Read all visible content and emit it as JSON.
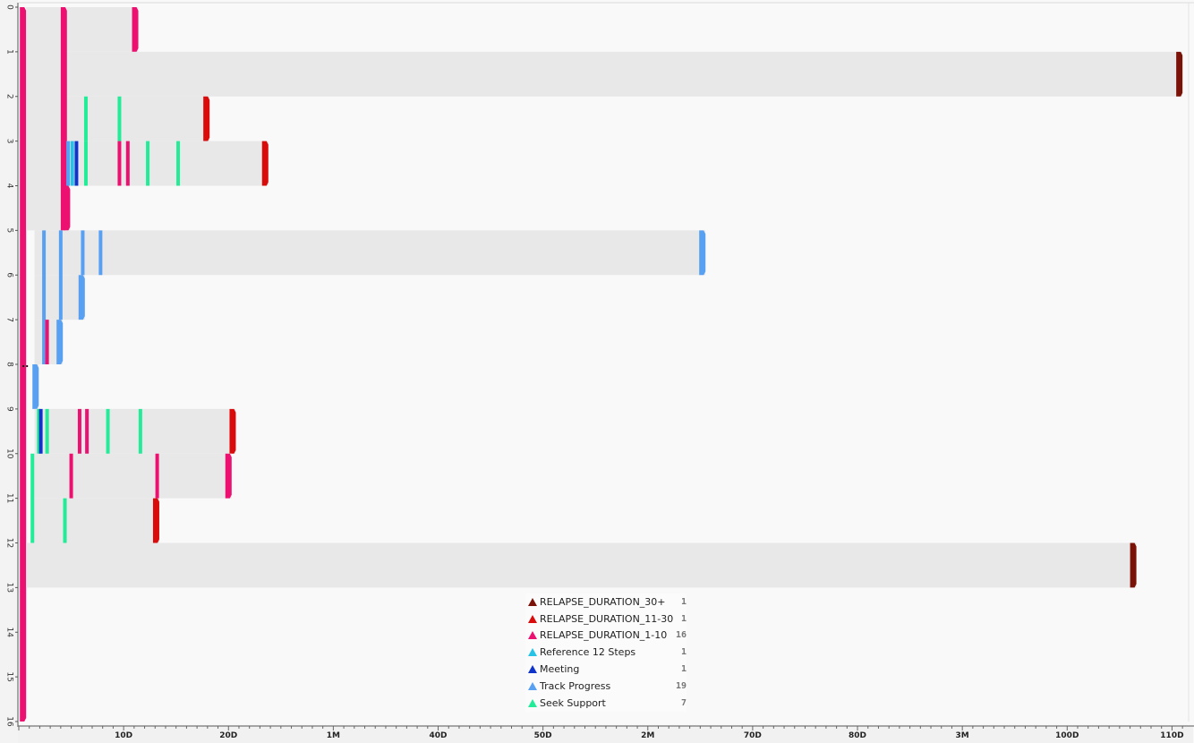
{
  "chart_data": {
    "type": "timeline",
    "y_ticks": [
      "0",
      "1",
      "2",
      "3",
      "4",
      "5",
      "6",
      "7",
      "8",
      "9",
      "10",
      "11",
      "12",
      "13",
      "14",
      "15",
      "16"
    ],
    "y_marker": "..",
    "x_ticks": [
      {
        "label": "10D",
        "days": 10
      },
      {
        "label": "20D",
        "days": 20
      },
      {
        "label": "1M",
        "days": 30
      },
      {
        "label": "40D",
        "days": 40
      },
      {
        "label": "50D",
        "days": 50
      },
      {
        "label": "2M",
        "days": 60
      },
      {
        "label": "70D",
        "days": 70
      },
      {
        "label": "80D",
        "days": 80
      },
      {
        "label": "3M",
        "days": 90
      },
      {
        "label": "100D",
        "days": 100
      },
      {
        "label": "110D",
        "days": 110
      }
    ],
    "x_range_days": [
      0,
      111.5
    ],
    "y_range": [
      0,
      16
    ],
    "colors": {
      "RELAPSE_DURATION_30+": "#7a1208",
      "RELAPSE_DURATION_11-30": "#d90b0b",
      "RELAPSE_DURATION_1-10": "#ec1070",
      "Reference 12 Steps": "#27c3e6",
      "Meeting": "#1033c9",
      "Track Progress": "#58a0f2",
      "Seek Support": "#23ec98"
    },
    "legend": [
      {
        "label": "RELAPSE_DURATION_30+",
        "count": "1"
      },
      {
        "label": "RELAPSE_DURATION_11-30",
        "count": "1"
      },
      {
        "label": "RELAPSE_DURATION_1-10",
        "count": "16"
      },
      {
        "label": "Reference 12 Steps",
        "count": "1"
      },
      {
        "label": "Meeting",
        "count": "1"
      },
      {
        "label": "Track Progress",
        "count": "19"
      },
      {
        "label": "Seek Support",
        "count": "7"
      }
    ],
    "bars": [
      {
        "start": 0.3,
        "end": 0.7,
        "y0": 0,
        "y1": 16,
        "end_type": "RELAPSE_DURATION_1-10",
        "shade": false
      },
      {
        "start": 0.7,
        "end": 4.6,
        "y0": 0,
        "y1": 5,
        "end_type": "RELAPSE_DURATION_1-10",
        "shade": true
      },
      {
        "start": 4.6,
        "end": 11.4,
        "y0": 0,
        "y1": 1,
        "end_type": "RELAPSE_DURATION_1-10",
        "shade": true
      },
      {
        "start": 4.6,
        "end": 111.0,
        "y0": 1,
        "y1": 2,
        "end_type": "RELAPSE_DURATION_30+",
        "shade": true
      },
      {
        "start": 4.6,
        "end": 18.2,
        "y0": 2,
        "y1": 3,
        "end_type": "RELAPSE_DURATION_11-30",
        "shade": true
      },
      {
        "start": 4.6,
        "end": 23.8,
        "y0": 3,
        "y1": 4,
        "end_type": "RELAPSE_DURATION_11-30",
        "shade": true
      },
      {
        "start": 4.6,
        "end": 4.9,
        "y0": 4,
        "y1": 5,
        "end_type": "RELAPSE_DURATION_1-10",
        "shade": true
      },
      {
        "start": 1.5,
        "end": 65.5,
        "y0": 5,
        "y1": 6,
        "end_type": "Track Progress",
        "shade": true
      },
      {
        "start": 1.5,
        "end": 6.3,
        "y0": 6,
        "y1": 7,
        "end_type": "Track Progress",
        "shade": true
      },
      {
        "start": 1.5,
        "end": 4.2,
        "y0": 7,
        "y1": 8,
        "end_type": "Track Progress",
        "shade": true
      },
      {
        "start": 1.5,
        "end": 1.9,
        "y0": 8,
        "y1": 9,
        "end_type": "Track Progress",
        "shade": true
      },
      {
        "start": 1.5,
        "end": 20.7,
        "y0": 9,
        "y1": 10,
        "end_type": "RELAPSE_DURATION_11-30",
        "shade": true
      },
      {
        "start": 1.3,
        "end": 20.3,
        "y0": 10,
        "y1": 11,
        "end_type": "RELAPSE_DURATION_1-10",
        "shade": true
      },
      {
        "start": 1.3,
        "end": 13.4,
        "y0": 11,
        "y1": 12,
        "end_type": "RELAPSE_DURATION_11-30",
        "shade": true
      },
      {
        "start": 0.7,
        "end": 106.6,
        "y0": 12,
        "y1": 13,
        "end_type": "RELAPSE_DURATION_30+",
        "shade": true
      }
    ],
    "events": [
      {
        "t": 6.4,
        "y0": 2,
        "y1": 3,
        "type": "Seek Support"
      },
      {
        "t": 9.6,
        "y0": 2,
        "y1": 3,
        "type": "Seek Support"
      },
      {
        "t": 4.7,
        "y0": 3,
        "y1": 4,
        "type": "Track Progress"
      },
      {
        "t": 5.1,
        "y0": 3,
        "y1": 4,
        "type": "Reference 12 Steps"
      },
      {
        "t": 5.5,
        "y0": 3,
        "y1": 4,
        "type": "Meeting"
      },
      {
        "t": 6.4,
        "y0": 3,
        "y1": 4,
        "type": "Seek Support"
      },
      {
        "t": 9.6,
        "y0": 3,
        "y1": 4,
        "type": "RELAPSE_DURATION_1-10"
      },
      {
        "t": 10.4,
        "y0": 3,
        "y1": 4,
        "type": "RELAPSE_DURATION_1-10"
      },
      {
        "t": 12.3,
        "y0": 3,
        "y1": 4,
        "type": "Seek Support"
      },
      {
        "t": 15.2,
        "y0": 3,
        "y1": 4,
        "type": "Seek Support"
      },
      {
        "t": 2.4,
        "y0": 5,
        "y1": 8,
        "type": "Track Progress"
      },
      {
        "t": 4.0,
        "y0": 5,
        "y1": 7,
        "type": "Track Progress"
      },
      {
        "t": 6.1,
        "y0": 5,
        "y1": 6,
        "type": "Track Progress"
      },
      {
        "t": 7.8,
        "y0": 5,
        "y1": 6,
        "type": "Track Progress"
      },
      {
        "t": 2.7,
        "y0": 7,
        "y1": 8,
        "type": "RELAPSE_DURATION_1-10"
      },
      {
        "t": 1.9,
        "y0": 9,
        "y1": 10,
        "type": "Seek Support"
      },
      {
        "t": 2.1,
        "y0": 9,
        "y1": 10,
        "type": "Meeting"
      },
      {
        "t": 2.7,
        "y0": 9,
        "y1": 10,
        "type": "Seek Support"
      },
      {
        "t": 5.8,
        "y0": 9,
        "y1": 10,
        "type": "RELAPSE_DURATION_1-10"
      },
      {
        "t": 6.5,
        "y0": 9,
        "y1": 10,
        "type": "RELAPSE_DURATION_1-10"
      },
      {
        "t": 8.5,
        "y0": 9,
        "y1": 10,
        "type": "Seek Support"
      },
      {
        "t": 11.6,
        "y0": 9,
        "y1": 10,
        "type": "Seek Support"
      },
      {
        "t": 5.0,
        "y0": 10,
        "y1": 11,
        "type": "RELAPSE_DURATION_1-10"
      },
      {
        "t": 13.2,
        "y0": 10,
        "y1": 11,
        "type": "RELAPSE_DURATION_1-10"
      },
      {
        "t": 1.3,
        "y0": 10,
        "y1": 12,
        "type": "Seek Support"
      },
      {
        "t": 4.4,
        "y0": 11,
        "y1": 12,
        "type": "Seek Support"
      }
    ]
  }
}
